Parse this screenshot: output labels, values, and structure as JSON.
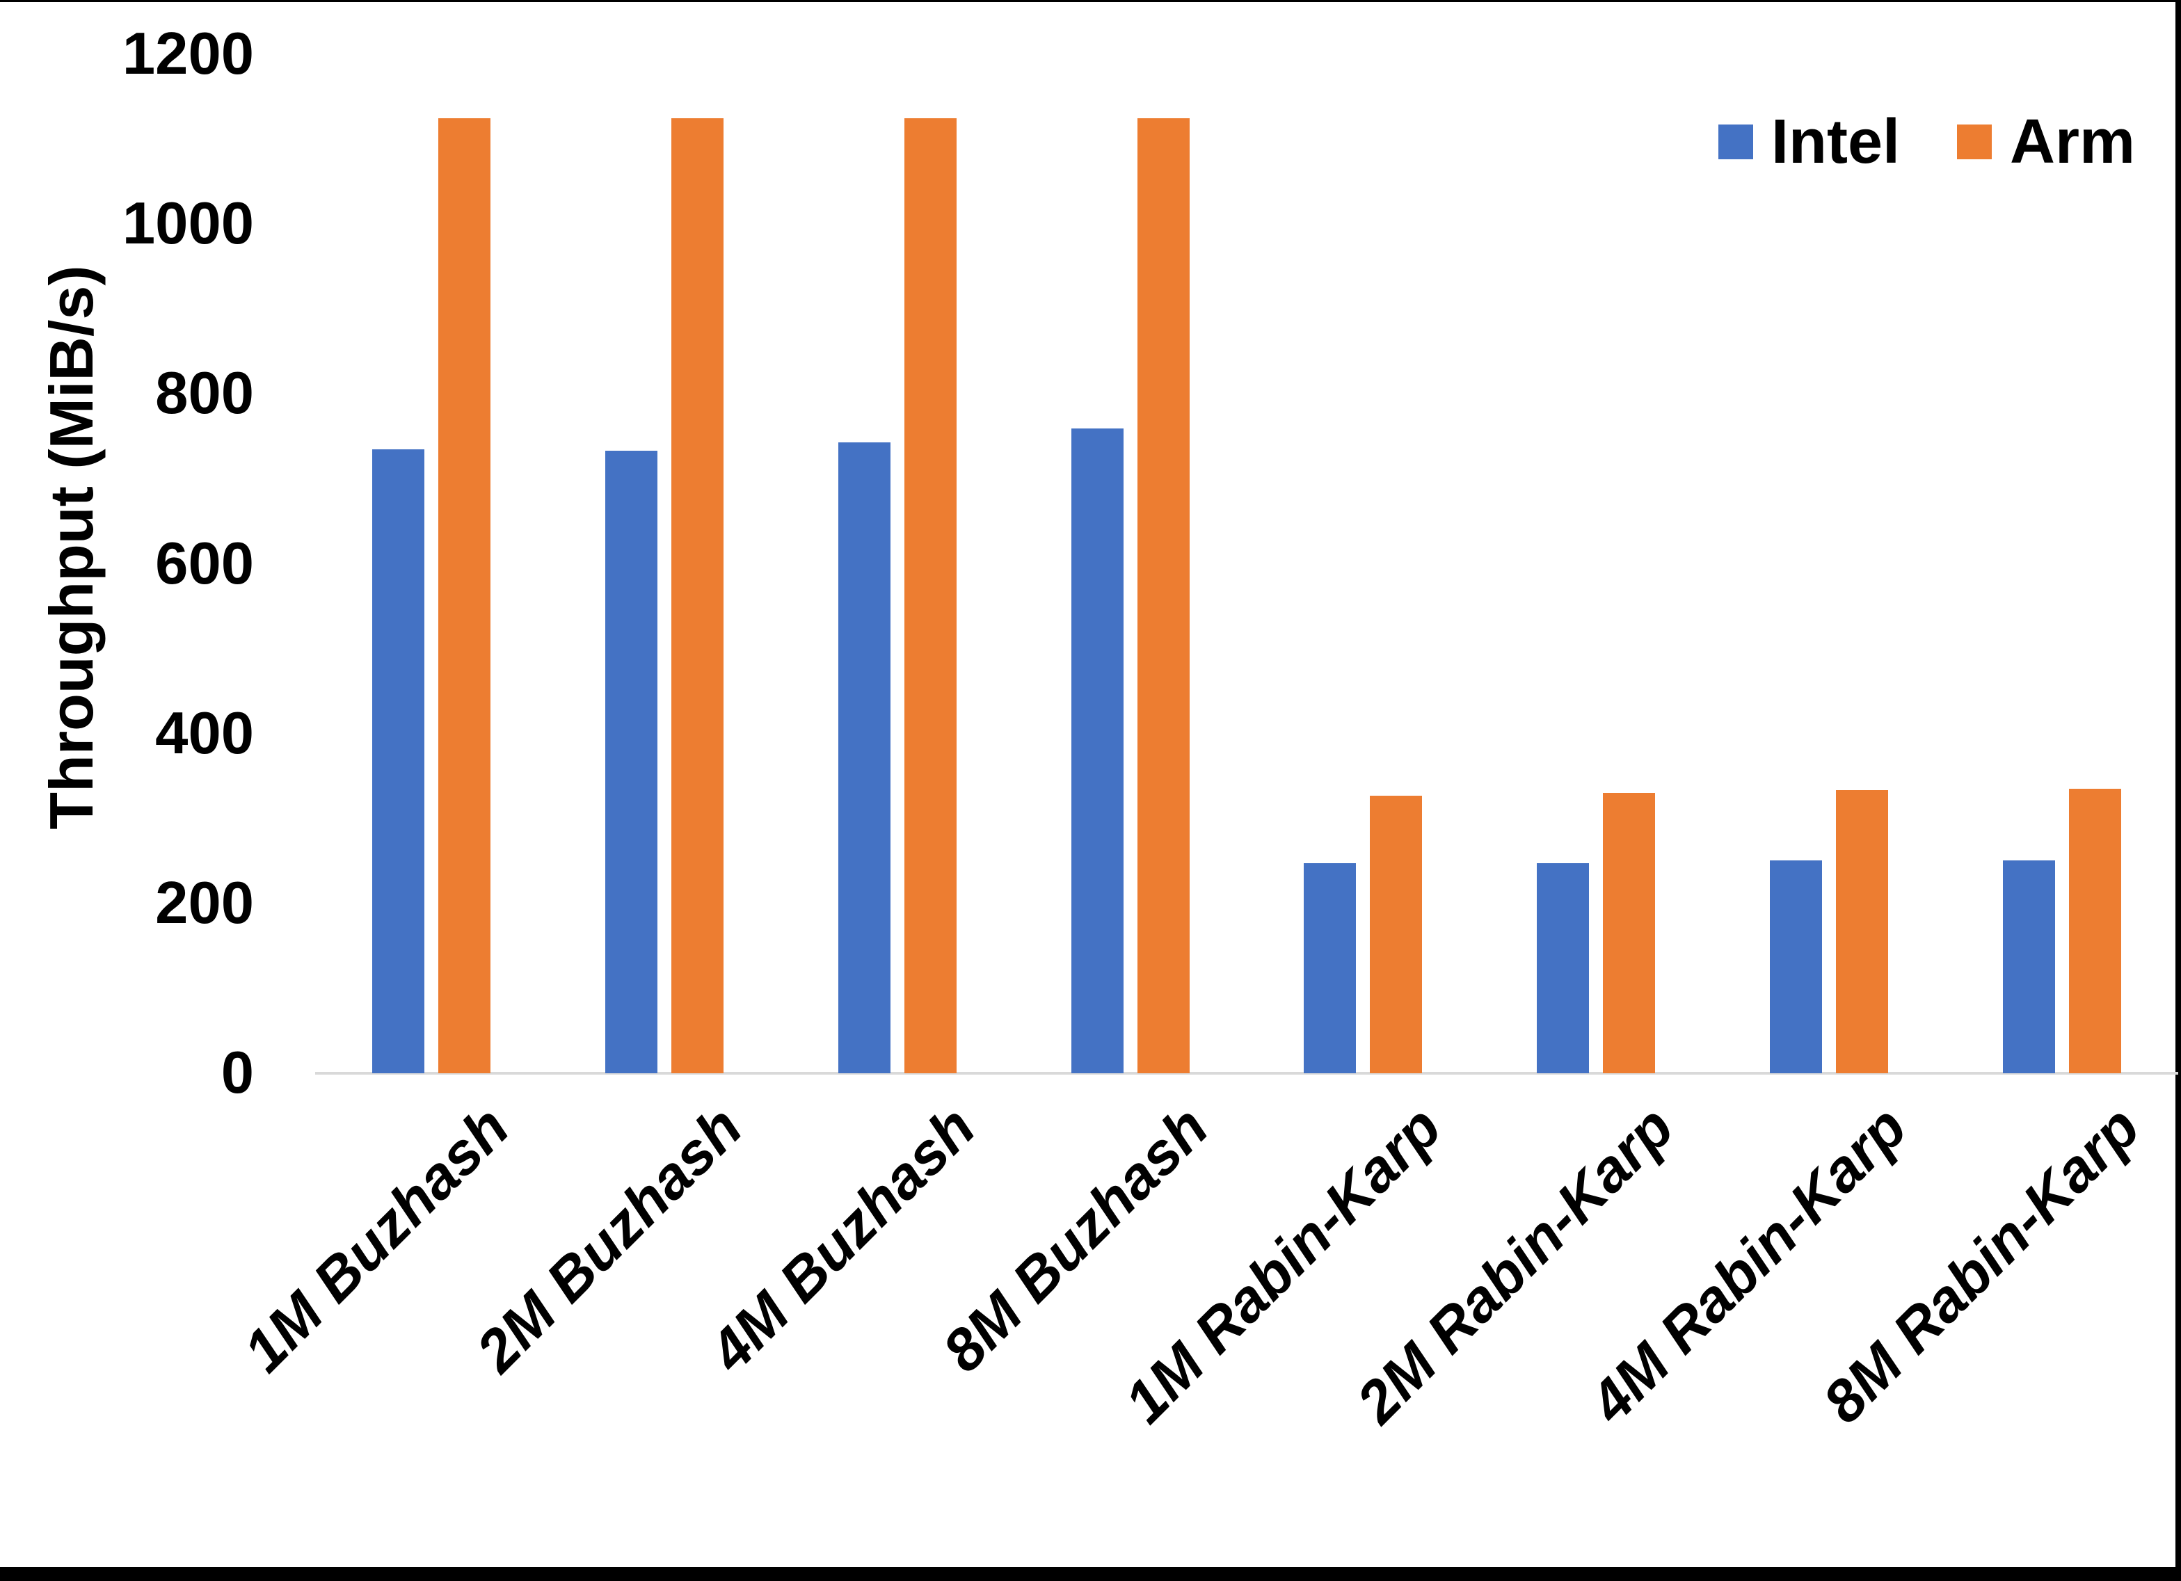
{
  "chart_data": {
    "type": "bar",
    "title": "",
    "categories": [
      "1M Buzhash",
      "2M Buzhash",
      "4M Buzhash",
      "8M Buzhash",
      "1M Rabin-Karp",
      "2M Rabin-Karp",
      "4M Rabin-Karp",
      "8M Rabin-Karp"
    ],
    "series": [
      {
        "name": "Intel",
        "color": "#4472C4",
        "values": [
          735,
          733,
          743,
          759,
          247,
          247,
          251,
          251
        ]
      },
      {
        "name": "Arm",
        "color": "#ED7D31",
        "values": [
          1125,
          1125,
          1125,
          1125,
          327,
          330,
          333,
          335
        ]
      }
    ],
    "xlabel": "",
    "ylabel": "Throughput (MiB/s)",
    "ylim": [
      0,
      1200
    ],
    "ytick_step": 200,
    "yticks": [
      0,
      200,
      400,
      600,
      800,
      1000,
      1200
    ],
    "grid": false,
    "legend_position": "top-right",
    "axis_color": "#D9D9D9",
    "background_color": "#FFFFFF",
    "text_color": "#000000"
  }
}
